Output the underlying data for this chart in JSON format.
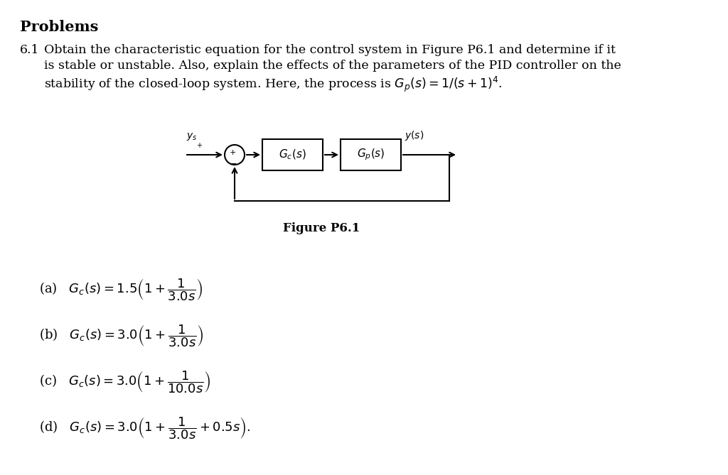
{
  "background_color": "#ffffff",
  "title": "Problems",
  "problem_number": "6.1",
  "problem_text_line1": "Obtain the characteristic equation for the control system in Figure P6.1 and determine if it",
  "problem_text_line2": "is stable or unstable. Also, explain the effects of the parameters of the PID controller on the",
  "problem_text_line3": "stability of the closed-loop system. Here, the process is $G_p(s) = 1/(s + 1)^4$.",
  "figure_label": "Figure P6.1",
  "part_a": "(a)   $G_c(s) = 1.5\\left(1 + \\dfrac{1}{3.0s}\\right)$",
  "part_b": "(b)   $G_c(s) = 3.0\\left(1 + \\dfrac{1}{3.0s}\\right)$",
  "part_c": "(c)   $G_c(s) = 3.0\\left(1 + \\dfrac{1}{10.0s}\\right)$",
  "part_d": "(d)   $G_c(s) = 3.0\\left(1 + \\dfrac{1}{3.0s} + 0.5s\\right).$",
  "font_size_title": 15,
  "font_size_body": 12.5,
  "font_size_parts": 13,
  "font_size_diagram": 11
}
